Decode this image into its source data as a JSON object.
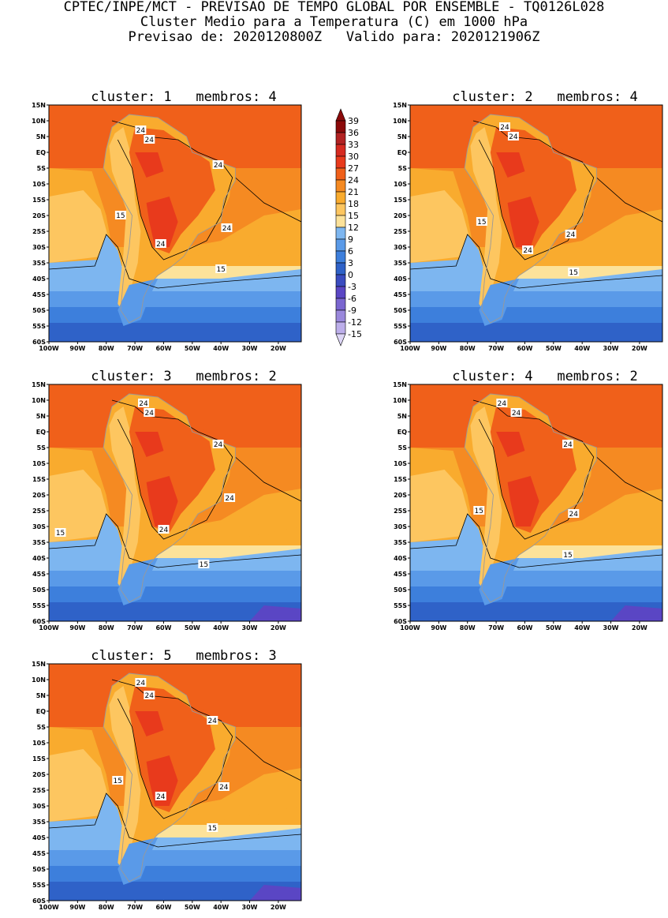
{
  "title": {
    "line1": "CPTEC/INPE/MCT - PREVISAO DE TEMPO GLOBAL POR ENSEMBLE - TQ0126L028",
    "line2": "Cluster Medio para a Temperatura (C) em 1000 hPa",
    "line3": "Previsao de: 2020120800Z   Valido para: 2020121906Z"
  },
  "axes": {
    "lat_labels": [
      "15N",
      "10N",
      "5N",
      "EQ",
      "5S",
      "10S",
      "15S",
      "20S",
      "25S",
      "30S",
      "35S",
      "40S",
      "45S",
      "50S",
      "55S",
      "60S"
    ],
    "lon_labels": [
      "100W",
      "90W",
      "80W",
      "70W",
      "60W",
      "50W",
      "40W",
      "30W",
      "20W"
    ]
  },
  "colorbar": {
    "levels": [
      "39",
      "36",
      "33",
      "30",
      "27",
      "24",
      "21",
      "18",
      "15",
      "12",
      "9",
      "6",
      "3",
      "0",
      "-3",
      "-6",
      "-9",
      "-12",
      "-15"
    ],
    "colors": [
      "#8b0a0a",
      "#b22222",
      "#d62a20",
      "#e83a1c",
      "#f0601a",
      "#f58a22",
      "#f9ab2e",
      "#fdc660",
      "#fce29a",
      "#7db6f0",
      "#5a9ae8",
      "#3d7fdc",
      "#2f62c8",
      "#3a4cc0",
      "#5a46c4",
      "#7a66d0",
      "#9a88dc",
      "#bcaeea",
      "#ddd6f6"
    ]
  },
  "panels": [
    {
      "title": "cluster: 1   membros: 4",
      "labels": [
        "24",
        "24",
        "24",
        "24",
        "24",
        "15",
        "15"
      ]
    },
    {
      "title": "cluster: 2   membros: 4",
      "labels": [
        "24",
        "24",
        "24",
        "24",
        "15",
        "15"
      ]
    },
    {
      "title": "cluster: 3   membros: 2",
      "labels": [
        "24",
        "24",
        "24",
        "24",
        "24",
        "15",
        "15"
      ]
    },
    {
      "title": "cluster: 4   membros: 2",
      "labels": [
        "24",
        "24",
        "24",
        "24",
        "15",
        "15"
      ]
    },
    {
      "title": "cluster: 5   membros: 3",
      "labels": [
        "24",
        "24",
        "24",
        "24",
        "24",
        "15",
        "15"
      ]
    }
  ]
}
